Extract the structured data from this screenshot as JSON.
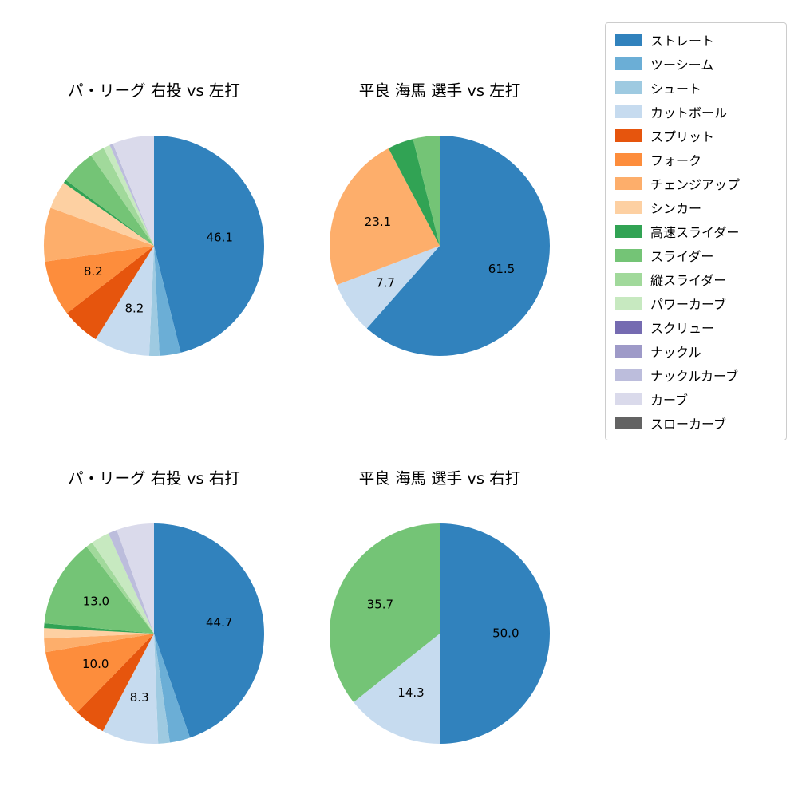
{
  "figure": {
    "background": "#ffffff"
  },
  "palette": {
    "ストレート": "#3182bd",
    "ツーシーム": "#6baed6",
    "シュート": "#9ecae1",
    "カットボール": "#c6dbef",
    "スプリット": "#e6550d",
    "フォーク": "#fd8d3c",
    "チェンジアップ": "#fdae6b",
    "シンカー": "#fdd0a2",
    "高速スライダー": "#31a354",
    "スライダー": "#74c476",
    "縦スライダー": "#a1d99b",
    "パワーカーブ": "#c7e9c0",
    "スクリュー": "#756bb1",
    "ナックル": "#9e9ac8",
    "ナックルカーブ": "#bcbddc",
    "カーブ": "#dadaeb",
    "スローカーブ": "#636363"
  },
  "legend": {
    "items": [
      {
        "label": "ストレート",
        "color": "#3182bd"
      },
      {
        "label": "ツーシーム",
        "color": "#6baed6"
      },
      {
        "label": "シュート",
        "color": "#9ecae1"
      },
      {
        "label": "カットボール",
        "color": "#c6dbef"
      },
      {
        "label": "スプリット",
        "color": "#e6550d"
      },
      {
        "label": "フォーク",
        "color": "#fd8d3c"
      },
      {
        "label": "チェンジアップ",
        "color": "#fdae6b"
      },
      {
        "label": "シンカー",
        "color": "#fdd0a2"
      },
      {
        "label": "高速スライダー",
        "color": "#31a354"
      },
      {
        "label": "スライダー",
        "color": "#74c476"
      },
      {
        "label": "縦スライダー",
        "color": "#a1d99b"
      },
      {
        "label": "パワーカーブ",
        "color": "#c7e9c0"
      },
      {
        "label": "スクリュー",
        "color": "#756bb1"
      },
      {
        "label": "ナックル",
        "color": "#9e9ac8"
      },
      {
        "label": "ナックルカーブ",
        "color": "#bcbddc"
      },
      {
        "label": "カーブ",
        "color": "#dadaeb"
      },
      {
        "label": "スローカーブ",
        "color": "#636363"
      }
    ]
  },
  "chart_data": [
    {
      "type": "pie",
      "title": "パ・リーグ 右投 vs 左打",
      "start_angle_deg": 90,
      "direction": "clockwise",
      "label_distance": 0.6,
      "slices": [
        {
          "name": "ストレート",
          "value": 46.1,
          "label": "46.1"
        },
        {
          "name": "ツーシーム",
          "value": 3.1
        },
        {
          "name": "シュート",
          "value": 1.5
        },
        {
          "name": "カットボール",
          "value": 8.2,
          "label": "8.2"
        },
        {
          "name": "スプリット",
          "value": 5.6
        },
        {
          "name": "フォーク",
          "value": 8.2,
          "label": "8.2"
        },
        {
          "name": "チェンジアップ",
          "value": 7.9
        },
        {
          "name": "シンカー",
          "value": 4.1
        },
        {
          "name": "高速スライダー",
          "value": 0.5
        },
        {
          "name": "スライダー",
          "value": 5.1
        },
        {
          "name": "縦スライダー",
          "value": 2.1
        },
        {
          "name": "パワーカーブ",
          "value": 1.0
        },
        {
          "name": "ナックルカーブ",
          "value": 0.5
        },
        {
          "name": "カーブ",
          "value": 6.1
        }
      ]
    },
    {
      "type": "pie",
      "title": "平良 海馬 選手 vs 左打",
      "start_angle_deg": 90,
      "direction": "clockwise",
      "label_distance": 0.6,
      "slices": [
        {
          "name": "ストレート",
          "value": 61.5,
          "label": "61.5"
        },
        {
          "name": "カットボール",
          "value": 7.7,
          "label": "7.7"
        },
        {
          "name": "チェンジアップ",
          "value": 23.1,
          "label": "23.1"
        },
        {
          "name": "高速スライダー",
          "value": 3.8
        },
        {
          "name": "スライダー",
          "value": 3.9
        }
      ]
    },
    {
      "type": "pie",
      "title": "パ・リーグ 右投 vs 右打",
      "start_angle_deg": 90,
      "direction": "clockwise",
      "label_distance": 0.6,
      "slices": [
        {
          "name": "ストレート",
          "value": 44.7,
          "label": "44.7"
        },
        {
          "name": "ツーシーム",
          "value": 3.0
        },
        {
          "name": "シュート",
          "value": 1.7
        },
        {
          "name": "カットボール",
          "value": 8.3,
          "label": "8.3"
        },
        {
          "name": "スプリット",
          "value": 4.6
        },
        {
          "name": "フォーク",
          "value": 10.0,
          "label": "10.0"
        },
        {
          "name": "チェンジアップ",
          "value": 2.0
        },
        {
          "name": "シンカー",
          "value": 1.5
        },
        {
          "name": "高速スライダー",
          "value": 0.7
        },
        {
          "name": "スライダー",
          "value": 13.0,
          "label": "13.0"
        },
        {
          "name": "縦スライダー",
          "value": 1.0
        },
        {
          "name": "パワーカーブ",
          "value": 2.7
        },
        {
          "name": "ナックルカーブ",
          "value": 1.3
        },
        {
          "name": "カーブ",
          "value": 5.5
        }
      ]
    },
    {
      "type": "pie",
      "title": "平良 海馬 選手 vs 右打",
      "start_angle_deg": 90,
      "direction": "clockwise",
      "label_distance": 0.6,
      "slices": [
        {
          "name": "ストレート",
          "value": 50.0,
          "label": "50.0"
        },
        {
          "name": "カットボール",
          "value": 14.3,
          "label": "14.3"
        },
        {
          "name": "スライダー",
          "value": 35.7,
          "label": "35.7"
        }
      ]
    }
  ]
}
